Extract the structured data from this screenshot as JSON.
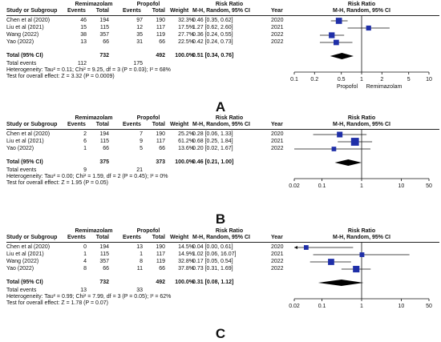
{
  "header_labels": {
    "study": "Study or Subgroup",
    "group1": "Remimazolam",
    "group2": "Propofol",
    "events": "Events",
    "total": "Total",
    "weight": "Weight",
    "rr_title": "Risk Ratio",
    "rr_method": "M-H, Random, 95% CI",
    "year": "Year"
  },
  "chart_data": [
    {
      "type": "forest",
      "panel_label": "A",
      "scale": "log",
      "xlim": [
        0.1,
        10
      ],
      "ticks": [
        "0.1",
        "0.2",
        "0.5",
        "1",
        "2",
        "5",
        "10"
      ],
      "tick_values": [
        0.1,
        0.2,
        0.5,
        1,
        2,
        5,
        10
      ],
      "favours_left": "Propofol",
      "favours_right": "Remimazolam",
      "studies": [
        {
          "name": "Chen et al (2020)",
          "e1": "46",
          "t1": "194",
          "e2": "97",
          "t2": "190",
          "weight": "32.3%",
          "ci_text": "0.46 [0.35, 0.62]",
          "year": "2020",
          "rr": 0.46,
          "lo": 0.35,
          "hi": 0.62,
          "w": 32.3
        },
        {
          "name": "Liu et al (2021)",
          "e1": "15",
          "t1": "115",
          "e2": "12",
          "t2": "117",
          "weight": "17.5%",
          "ci_text": "1.27 [0.62, 2.60]",
          "year": "2021",
          "rr": 1.27,
          "lo": 0.62,
          "hi": 2.6,
          "w": 17.5
        },
        {
          "name": "Wang (2022)",
          "e1": "38",
          "t1": "357",
          "e2": "35",
          "t2": "119",
          "weight": "27.7%",
          "ci_text": "0.36 [0.24, 0.55]",
          "year": "2022",
          "rr": 0.36,
          "lo": 0.24,
          "hi": 0.55,
          "w": 27.7
        },
        {
          "name": "Yao (2022)",
          "e1": "13",
          "t1": "66",
          "e2": "31",
          "t2": "66",
          "weight": "22.5%",
          "ci_text": "0.42 [0.24, 0.73]",
          "year": "2022",
          "rr": 0.42,
          "lo": 0.24,
          "hi": 0.73,
          "w": 22.5
        }
      ],
      "total": {
        "label": "Total (95% CI)",
        "t1": "732",
        "t2": "492",
        "weight": "100.0%",
        "ci_text": "0.51 [0.34, 0.76]",
        "rr": 0.51,
        "lo": 0.34,
        "hi": 0.76
      },
      "total_events": {
        "label": "Total events",
        "e1": "112",
        "e2": "175"
      },
      "heterogeneity": "Heterogeneity: Tau² = 0.11; Chi² = 9.25, df = 3 (P = 0.03); I² = 68%",
      "overall_effect": "Test for overall effect: Z = 3.32 (P = 0.0009)"
    },
    {
      "type": "forest",
      "panel_label": "B",
      "scale": "log",
      "xlim": [
        0.02,
        50
      ],
      "ticks": [
        "0.02",
        "0.1",
        "1",
        "10",
        "50"
      ],
      "tick_values": [
        0.02,
        0.1,
        1,
        10,
        50
      ],
      "favours_left": "",
      "favours_right": "",
      "studies": [
        {
          "name": "Chen et al (2020)",
          "e1": "2",
          "t1": "194",
          "e2": "7",
          "t2": "190",
          "weight": "25.2%",
          "ci_text": "0.28 [0.06, 1.33]",
          "year": "2020",
          "rr": 0.28,
          "lo": 0.06,
          "hi": 1.33,
          "w": 25.2
        },
        {
          "name": "Liu et al (2021)",
          "e1": "6",
          "t1": "115",
          "e2": "9",
          "t2": "117",
          "weight": "61.2%",
          "ci_text": "0.68 [0.25, 1.84]",
          "year": "2021",
          "rr": 0.68,
          "lo": 0.25,
          "hi": 1.84,
          "w": 61.2
        },
        {
          "name": "Yao (2022)",
          "e1": "1",
          "t1": "66",
          "e2": "5",
          "t2": "66",
          "weight": "13.6%",
          "ci_text": "0.20 [0.02, 1.67]",
          "year": "2022",
          "rr": 0.2,
          "lo": 0.02,
          "hi": 1.67,
          "w": 13.6
        }
      ],
      "total": {
        "label": "Total (95% CI)",
        "t1": "375",
        "t2": "373",
        "weight": "100.0%",
        "ci_text": "0.46 [0.21, 1.00]",
        "rr": 0.46,
        "lo": 0.21,
        "hi": 1.0
      },
      "total_events": {
        "label": "Total events",
        "e1": "9",
        "e2": "21"
      },
      "heterogeneity": "Heterogeneity: Tau² = 0.00; Chi² = 1.59, df = 2 (P = 0.45); I² = 0%",
      "overall_effect": "Test for overall effect: Z = 1.95 (P = 0.05)"
    },
    {
      "type": "forest",
      "panel_label": "C",
      "scale": "log",
      "xlim": [
        0.02,
        50
      ],
      "ticks": [
        "0.02",
        "0.1",
        "1",
        "10",
        "50"
      ],
      "tick_values": [
        0.02,
        0.1,
        1,
        10,
        50
      ],
      "favours_left": "",
      "favours_right": "",
      "studies": [
        {
          "name": "Chen et al (2020)",
          "e1": "0",
          "t1": "194",
          "e2": "13",
          "t2": "190",
          "weight": "14.5%",
          "ci_text": "0.04 [0.00, 0.61]",
          "year": "2020",
          "rr": 0.04,
          "lo": 0.0025,
          "hi": 0.61,
          "w": 14.5
        },
        {
          "name": "Liu et al (2021)",
          "e1": "1",
          "t1": "115",
          "e2": "1",
          "t2": "117",
          "weight": "14.9%",
          "ci_text": "1.02 [0.06, 16.07]",
          "year": "2021",
          "rr": 1.02,
          "lo": 0.06,
          "hi": 16.07,
          "w": 14.9
        },
        {
          "name": "Wang (2022)",
          "e1": "4",
          "t1": "357",
          "e2": "8",
          "t2": "119",
          "weight": "32.8%",
          "ci_text": "0.17 [0.05, 0.54]",
          "year": "2022",
          "rr": 0.17,
          "lo": 0.05,
          "hi": 0.54,
          "w": 32.8
        },
        {
          "name": "Yao (2022)",
          "e1": "8",
          "t1": "66",
          "e2": "11",
          "t2": "66",
          "weight": "37.8%",
          "ci_text": "0.73 [0.31, 1.69]",
          "year": "2022",
          "rr": 0.73,
          "lo": 0.31,
          "hi": 1.69,
          "w": 37.8
        }
      ],
      "total": {
        "label": "Total (95% CI)",
        "t1": "732",
        "t2": "492",
        "weight": "100.0%",
        "ci_text": "0.31 [0.08, 1.12]",
        "rr": 0.31,
        "lo": 0.08,
        "hi": 1.12
      },
      "total_events": {
        "label": "Total events",
        "e1": "13",
        "e2": "33"
      },
      "heterogeneity": "Heterogeneity: Tau² = 0.99; Chi² = 7.99, df = 3 (P = 0.05); I² = 62%",
      "overall_effect": "Test for overall effect: Z = 1.78 (P = 0.07)"
    }
  ],
  "colors": {
    "square": "#1f2fa8",
    "diamond": "#000000",
    "line": "#111111"
  }
}
